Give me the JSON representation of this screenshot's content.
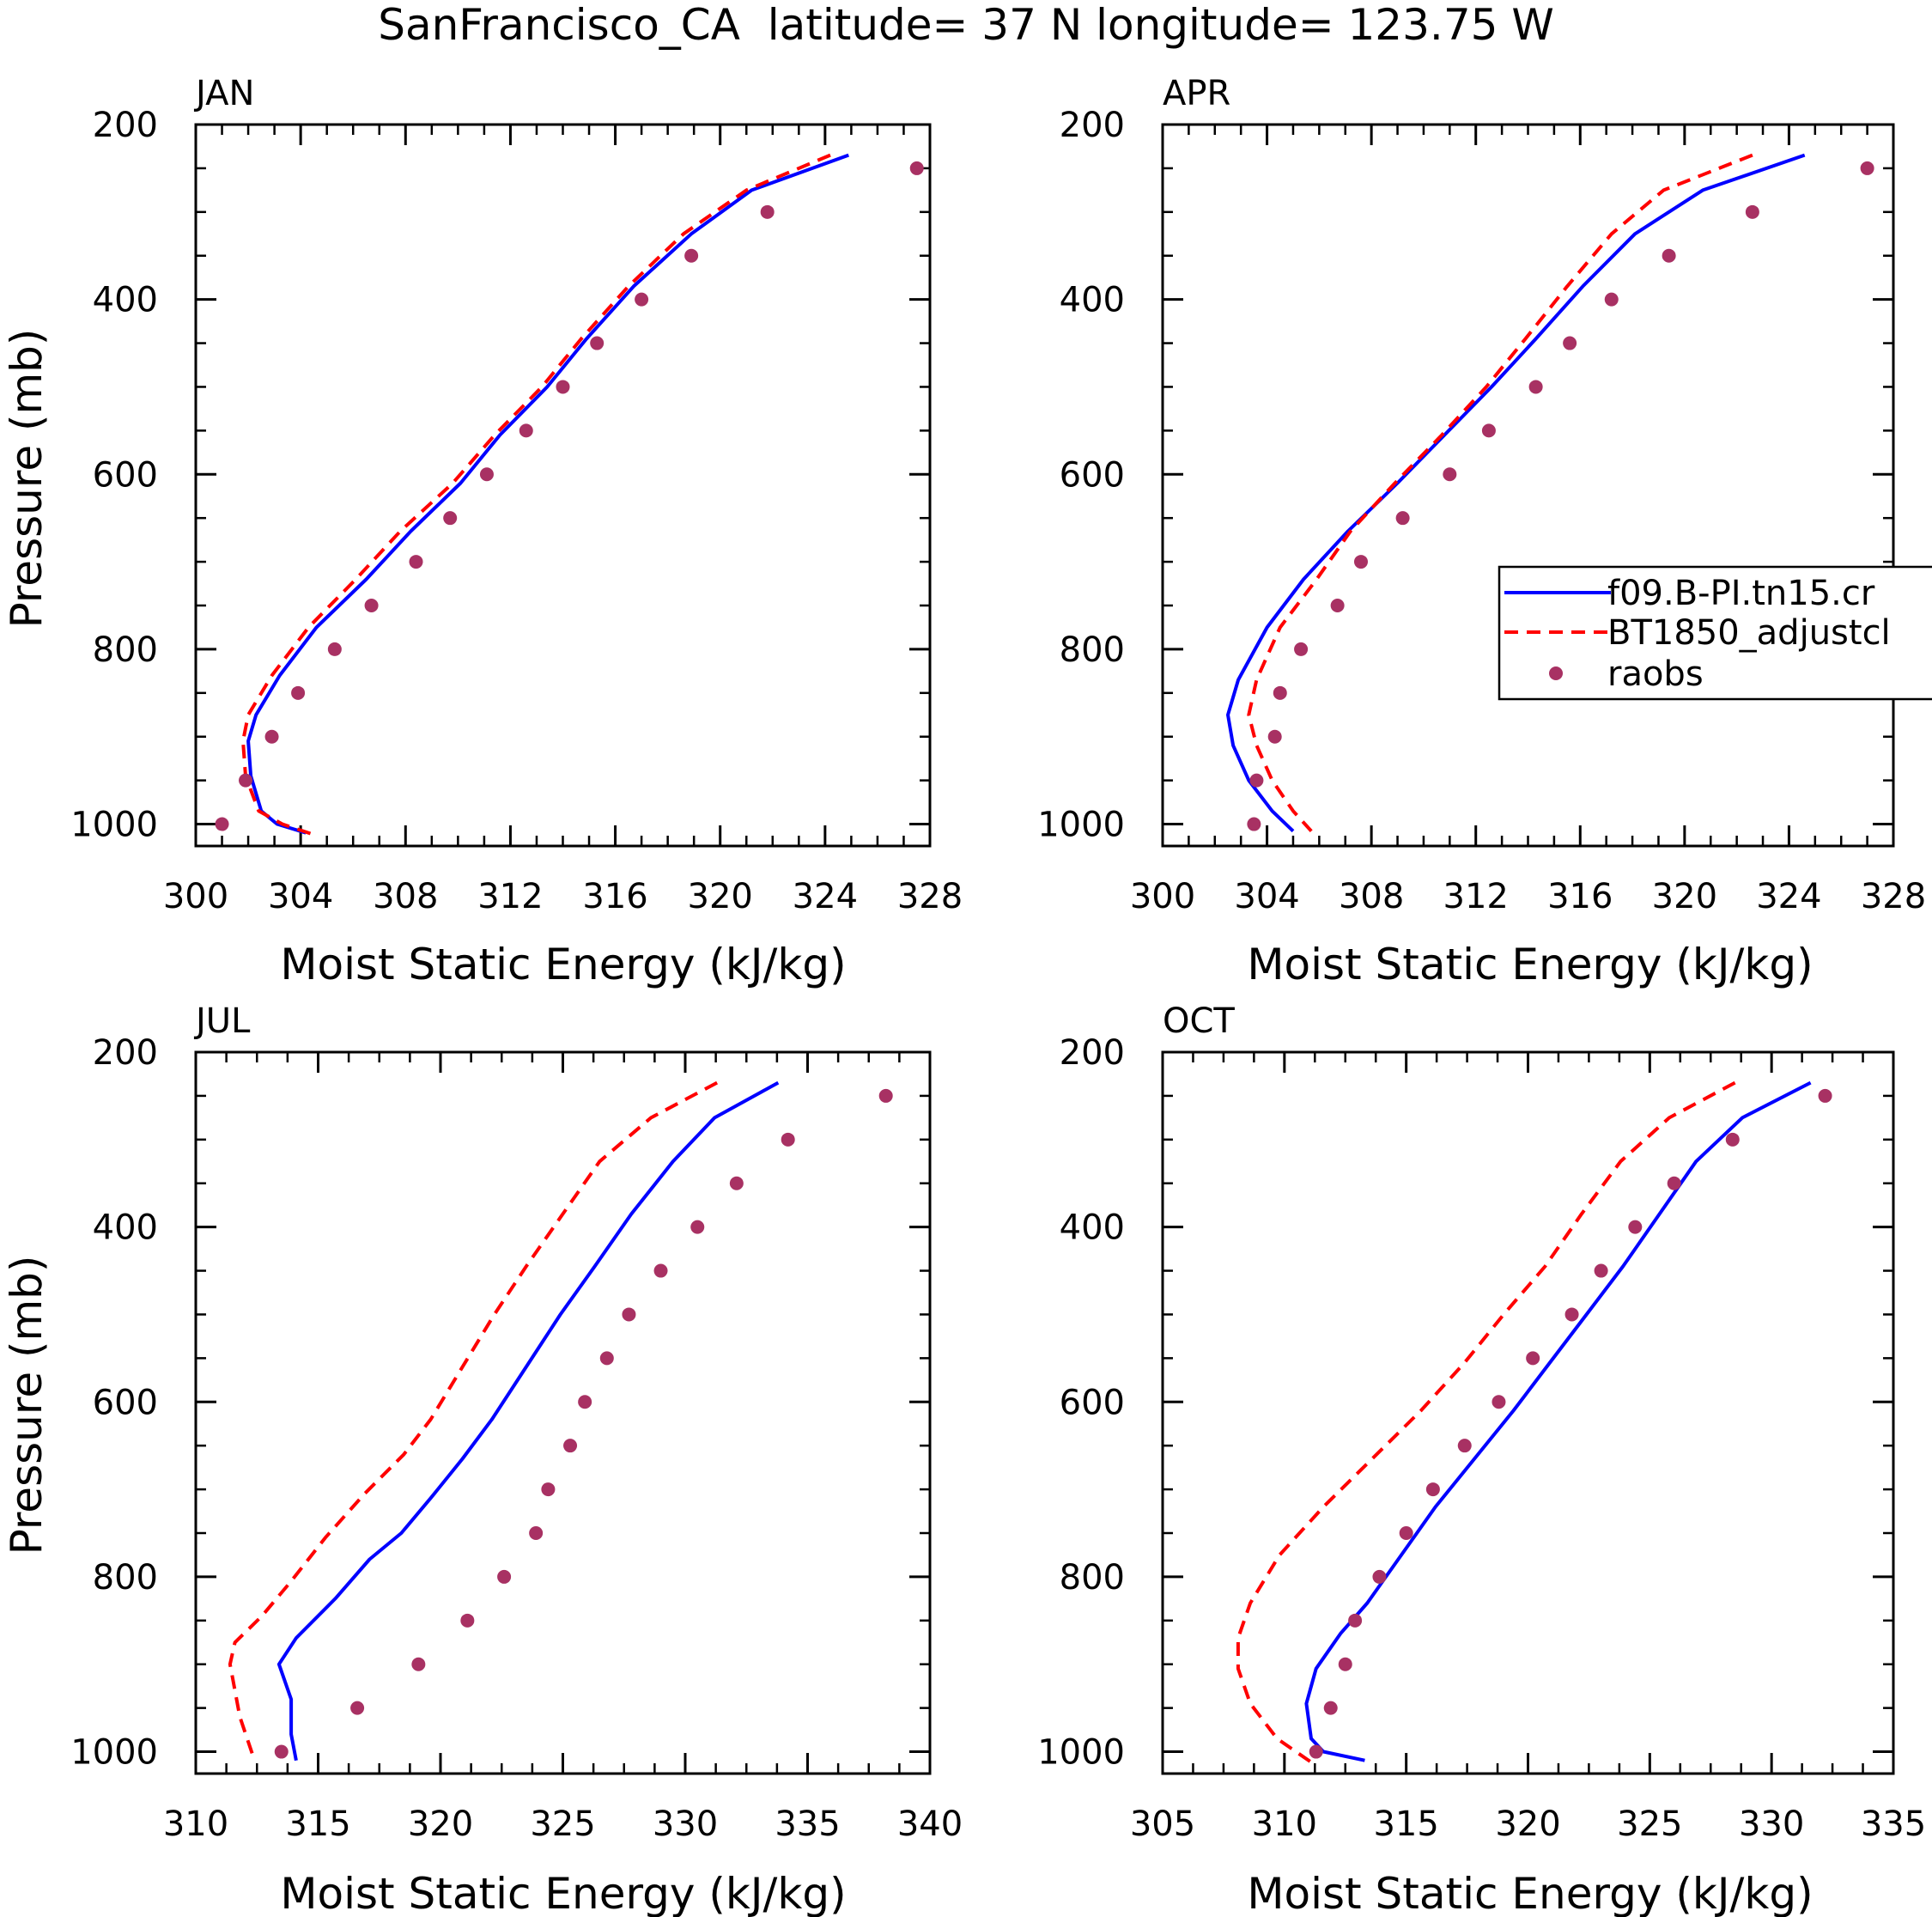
{
  "figure": {
    "title": "SanFrancisco_CA  latitude= 37 N longitude= 123.75 W"
  },
  "legend": {
    "entries": [
      {
        "label": "f09.B-PI.tn15.cr",
        "style": "solid",
        "color": "#0000ff"
      },
      {
        "label": "BT1850_adjustcl",
        "style": "dashed",
        "color": "#ff0000"
      },
      {
        "label": "raobs",
        "style": "dot",
        "color": "#a83163"
      }
    ]
  },
  "colors": {
    "model": "#0000ff",
    "adjust": "#ff0000",
    "raobs": "#a83163",
    "axis": "#000000"
  },
  "chart_data": [
    {
      "type": "line",
      "title": "JAN",
      "xlabel": "Moist Static Energy (kJ/kg)",
      "ylabel": "Pressure (mb)",
      "xlim": [
        300,
        328
      ],
      "xticks": [
        300,
        304,
        308,
        312,
        316,
        320,
        324,
        328
      ],
      "ylim": [
        1025,
        200
      ],
      "yticks": [
        200,
        400,
        600,
        800,
        1000
      ],
      "series": [
        {
          "name": "f09.B-PI.tn15.cr",
          "kind": "solid",
          "x": [
            324.9,
            321.2,
            318.9,
            316.7,
            314.9,
            313.4,
            311.6,
            310.1,
            308.2,
            306.5,
            304.6,
            303.2,
            302.3,
            302.0,
            302.1,
            302.5,
            303.1,
            304.2
          ],
          "y": [
            235,
            275,
            325,
            385,
            445,
            500,
            555,
            610,
            665,
            720,
            775,
            830,
            875,
            905,
            945,
            985,
            1000,
            1010
          ]
        },
        {
          "name": "BT1850_adjustcl",
          "kind": "dashed",
          "x": [
            324.2,
            321.0,
            318.6,
            316.5,
            314.7,
            313.2,
            311.4,
            309.8,
            307.8,
            306.1,
            304.3,
            302.9,
            302.0,
            301.8,
            301.9,
            302.4,
            303.3,
            304.5
          ],
          "y": [
            235,
            275,
            325,
            385,
            445,
            500,
            555,
            610,
            665,
            720,
            775,
            830,
            875,
            905,
            945,
            985,
            1000,
            1012
          ]
        },
        {
          "name": "raobs",
          "kind": "dot",
          "x": [
            327.5,
            321.8,
            318.9,
            317.0,
            315.3,
            314.0,
            312.6,
            311.1,
            309.7,
            308.4,
            306.7,
            305.3,
            303.9,
            302.9,
            301.9,
            301.0
          ],
          "y": [
            250,
            300,
            350,
            400,
            450,
            500,
            550,
            600,
            650,
            700,
            750,
            800,
            850,
            900,
            950,
            1000
          ]
        }
      ]
    },
    {
      "type": "line",
      "title": "APR",
      "xlabel": "Moist Static Energy (kJ/kg)",
      "ylabel": "",
      "xlim": [
        300,
        328
      ],
      "xticks": [
        300,
        304,
        308,
        312,
        316,
        320,
        324,
        328
      ],
      "ylim": [
        1025,
        200
      ],
      "yticks": [
        200,
        400,
        600,
        800,
        1000
      ],
      "series": [
        {
          "name": "f09.B-PI.tn15.cr",
          "kind": "solid",
          "x": [
            324.6,
            320.7,
            318.1,
            316.1,
            314.3,
            312.6,
            310.8,
            309.0,
            307.1,
            305.4,
            304.0,
            302.9,
            302.5,
            302.7,
            303.3,
            304.2,
            305.0
          ],
          "y": [
            235,
            275,
            325,
            385,
            445,
            500,
            555,
            610,
            665,
            720,
            775,
            835,
            875,
            910,
            950,
            985,
            1008
          ]
        },
        {
          "name": "BT1850_adjustcl",
          "kind": "dashed",
          "x": [
            322.6,
            319.2,
            317.2,
            315.5,
            313.9,
            312.4,
            310.7,
            308.9,
            307.2,
            305.9,
            304.5,
            303.6,
            303.3,
            303.6,
            304.2,
            305.0,
            305.7
          ],
          "y": [
            235,
            275,
            325,
            385,
            445,
            500,
            555,
            610,
            665,
            720,
            775,
            835,
            875,
            910,
            950,
            985,
            1008
          ]
        },
        {
          "name": "raobs",
          "kind": "dot",
          "x": [
            327.0,
            322.6,
            319.4,
            317.2,
            315.6,
            314.3,
            312.5,
            311.0,
            309.2,
            307.6,
            306.7,
            305.3,
            304.5,
            304.3,
            303.6,
            303.5
          ],
          "y": [
            250,
            300,
            350,
            400,
            450,
            500,
            550,
            600,
            650,
            700,
            750,
            800,
            850,
            900,
            950,
            1000
          ]
        }
      ]
    },
    {
      "type": "line",
      "title": "JUL",
      "xlabel": "Moist Static Energy (kJ/kg)",
      "ylabel": "Pressure (mb)",
      "xlim": [
        310,
        340
      ],
      "xticks": [
        310,
        315,
        320,
        325,
        330,
        335,
        340
      ],
      "ylim": [
        1025,
        200
      ],
      "yticks": [
        200,
        400,
        600,
        800,
        1000
      ],
      "series": [
        {
          "name": "f09.B-PI.tn15.cr",
          "kind": "solid",
          "x": [
            333.8,
            331.2,
            329.5,
            327.8,
            326.3,
            324.9,
            323.5,
            322.1,
            320.9,
            319.6,
            318.4,
            317.1,
            315.7,
            314.1,
            313.4,
            313.9,
            313.9,
            314.1
          ],
          "y": [
            235,
            275,
            325,
            385,
            445,
            500,
            560,
            620,
            665,
            710,
            750,
            780,
            825,
            870,
            900,
            940,
            980,
            1010
          ]
        },
        {
          "name": "BT1850_adjustcl",
          "kind": "dashed",
          "x": [
            331.3,
            328.6,
            326.5,
            325.0,
            323.5,
            322.2,
            320.9,
            319.6,
            318.5,
            316.9,
            315.3,
            313.9,
            312.7,
            311.6,
            311.4,
            311.8,
            312.4
          ],
          "y": [
            235,
            275,
            325,
            385,
            445,
            500,
            560,
            620,
            660,
            705,
            755,
            805,
            845,
            875,
            900,
            960,
            1010
          ]
        },
        {
          "name": "raobs",
          "kind": "dot",
          "x": [
            338.2,
            334.2,
            332.1,
            330.5,
            329.0,
            327.7,
            326.8,
            325.9,
            325.3,
            324.4,
            323.9,
            322.6,
            321.1,
            319.1,
            316.6,
            313.5
          ],
          "y": [
            250,
            300,
            350,
            400,
            450,
            500,
            550,
            600,
            650,
            700,
            750,
            800,
            850,
            900,
            950,
            1000
          ]
        }
      ]
    },
    {
      "type": "line",
      "title": "OCT",
      "xlabel": "Moist Static Energy (kJ/kg)",
      "ylabel": "",
      "xlim": [
        305,
        335
      ],
      "xticks": [
        305,
        310,
        315,
        320,
        325,
        330,
        335
      ],
      "ylim": [
        1025,
        200
      ],
      "yticks": [
        200,
        400,
        600,
        800,
        1000
      ],
      "series": [
        {
          "name": "f09.B-PI.tn15.cr",
          "kind": "solid",
          "x": [
            331.6,
            328.8,
            326.9,
            325.4,
            323.9,
            322.4,
            320.9,
            319.4,
            317.8,
            316.2,
            314.8,
            313.4,
            312.3,
            311.3,
            310.9,
            311.1,
            311.6,
            313.3
          ],
          "y": [
            235,
            275,
            325,
            385,
            445,
            500,
            555,
            610,
            665,
            720,
            775,
            830,
            865,
            905,
            945,
            985,
            1000,
            1010
          ]
        },
        {
          "name": "BT1850_adjustcl",
          "kind": "dashed",
          "x": [
            328.5,
            325.8,
            323.8,
            322.2,
            320.7,
            319.0,
            317.4,
            315.6,
            313.6,
            311.6,
            309.8,
            308.6,
            308.1,
            308.1,
            308.6,
            309.7,
            311.1
          ],
          "y": [
            235,
            275,
            325,
            385,
            445,
            500,
            555,
            610,
            665,
            720,
            775,
            830,
            870,
            905,
            945,
            985,
            1012
          ]
        },
        {
          "name": "raobs",
          "kind": "dot",
          "x": [
            332.2,
            328.4,
            326.0,
            324.4,
            323.0,
            321.8,
            320.2,
            318.8,
            317.4,
            316.1,
            315.0,
            313.9,
            312.9,
            312.5,
            311.9,
            311.3
          ],
          "y": [
            250,
            300,
            350,
            400,
            450,
            500,
            550,
            600,
            650,
            700,
            750,
            800,
            850,
            900,
            950,
            1000
          ]
        }
      ]
    }
  ]
}
